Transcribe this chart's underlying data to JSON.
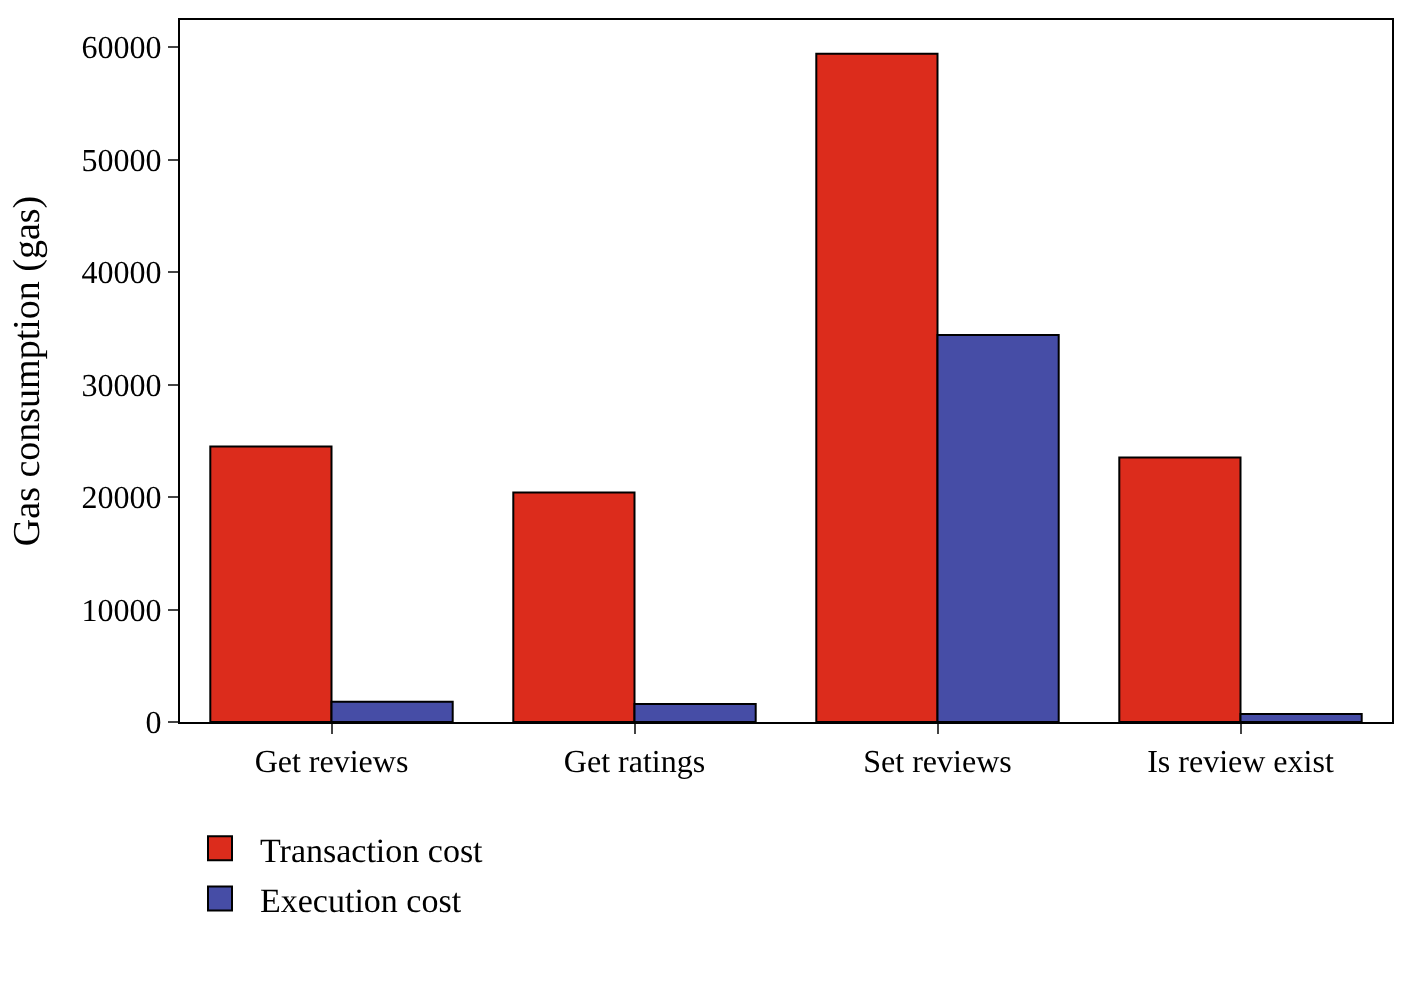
{
  "chart_data": {
    "type": "bar",
    "ylabel": "Gas consumption (gas)",
    "categories": [
      "Get reviews",
      "Get ratings",
      "Set reviews",
      "Is review exist"
    ],
    "series": [
      {
        "name": "Transaction cost",
        "color": "#dc2c1c",
        "values": [
          24500,
          20400,
          59400,
          23500
        ]
      },
      {
        "name": "Execution cost",
        "color": "#464da6",
        "values": [
          1800,
          1600,
          34400,
          700
        ]
      }
    ],
    "ylim": [
      0,
      62400
    ],
    "yticks": [
      0,
      10000,
      20000,
      30000,
      40000,
      50000,
      60000
    ],
    "legend": "bottom left"
  }
}
